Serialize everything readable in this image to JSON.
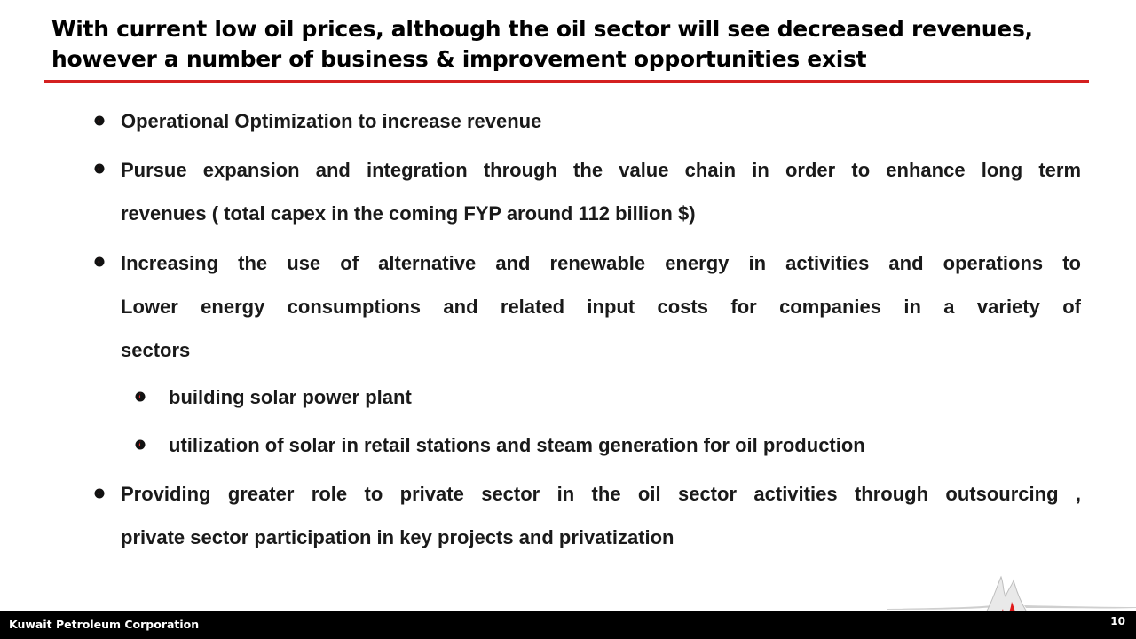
{
  "slide": {
    "title_lines": [
      "With current low oil prices, although the oil sector will see decreased revenues,",
      "however a number of business & improvement opportunities exist"
    ],
    "bullets": [
      {
        "level": 1,
        "lines": [
          "Operational Optimization to increase revenue"
        ]
      },
      {
        "level": 1,
        "lines": [
          "Pursue expansion and integration through the value chain in order to enhance long term",
          "revenues ( total capex in the coming FYP around 112 billion $)"
        ]
      },
      {
        "level": 1,
        "lines": [
          "Increasing the use of alternative and renewable energy in activities and operations to",
          "Lower energy consumptions and related input costs for companies in a variety of",
          "sectors"
        ]
      },
      {
        "level": 2,
        "lines": [
          "building solar power plant"
        ]
      },
      {
        "level": 2,
        "lines": [
          "utilization of solar in retail stations and steam generation for oil production"
        ]
      },
      {
        "level": 1,
        "lines": [
          "Providing greater role to private sector in the oil sector activities through outsourcing ,",
          "private sector participation in key projects and privatization"
        ]
      }
    ],
    "icons": {
      "bullet": "flame-drop-bullet-icon",
      "logo": "kpc-flame-logo"
    },
    "colors": {
      "accent_red": "#d42020",
      "footer_bg": "#000000",
      "text": "#1a1a1a"
    }
  },
  "footer": {
    "company": "Kuwait Petroleum Corporation",
    "page_number": "10"
  }
}
